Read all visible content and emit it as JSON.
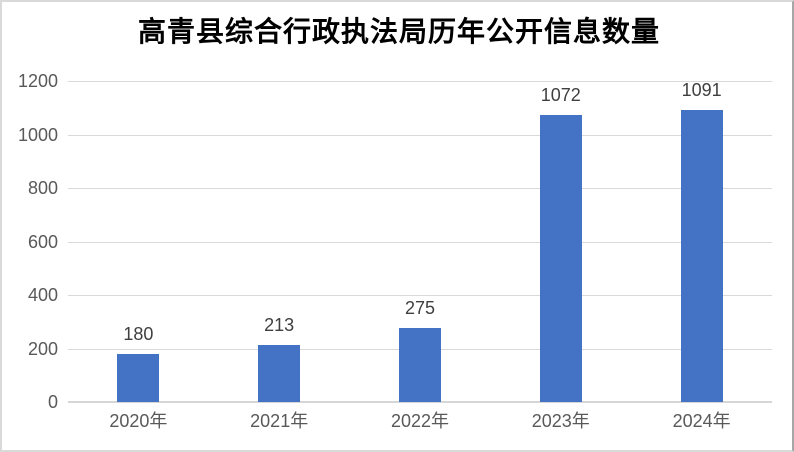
{
  "chart_data": {
    "type": "bar",
    "title": "高青县综合行政执法局历年公开信息数量",
    "categories": [
      "2020年",
      "2021年",
      "2022年",
      "2023年",
      "2024年"
    ],
    "values": [
      180,
      213,
      275,
      1072,
      1091
    ],
    "data_labels": [
      "180",
      "213",
      "275",
      "1072",
      "1091"
    ],
    "xlabel": "",
    "ylabel": "",
    "ylim": [
      0,
      1200
    ],
    "yticks": [
      0,
      200,
      400,
      600,
      800,
      1000,
      1200
    ],
    "grid": "horizontal-on",
    "legend": "none"
  },
  "colors": {
    "bar": "#4472C4",
    "gridline": "#D9D9D9",
    "axis_line": "#D6D6D6",
    "title_text": "#000000",
    "tick_text": "#595959",
    "data_label_text": "#3F3F3F",
    "background": "#FFFFFF"
  }
}
